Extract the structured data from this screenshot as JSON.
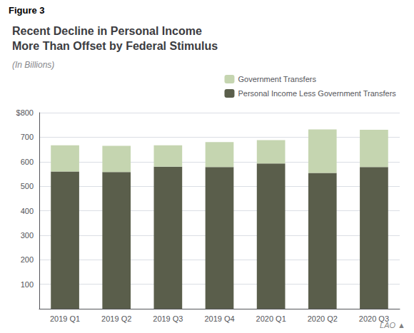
{
  "chart_data": {
    "type": "bar",
    "title": "Recent Decline in Personal Income\nMore Than Offset by Federal Stimulus",
    "subtitle": "(In Billions)",
    "annotations": [
      "Figure 3",
      "LAO ▲"
    ],
    "categories": [
      "2019 Q1",
      "2019 Q2",
      "2019 Q3",
      "2019 Q4",
      "2020 Q1",
      "2020 Q2",
      "2020 Q3"
    ],
    "series": [
      {
        "name": "Personal Income Less Government Transfers",
        "color": "#5a5e4b",
        "values": [
          560,
          558,
          580,
          578,
          593,
          554,
          578
        ]
      },
      {
        "name": "Government Transfers",
        "color": "#c5d5b0",
        "values": [
          107,
          107,
          87,
          102,
          95,
          178,
          152
        ]
      }
    ],
    "stacked": true,
    "ylim": [
      0,
      800
    ],
    "yticks": [
      100,
      200,
      300,
      400,
      500,
      600,
      700,
      {
        "value": 800,
        "label": "$800"
      }
    ],
    "grid": true,
    "legend": "upper right"
  }
}
